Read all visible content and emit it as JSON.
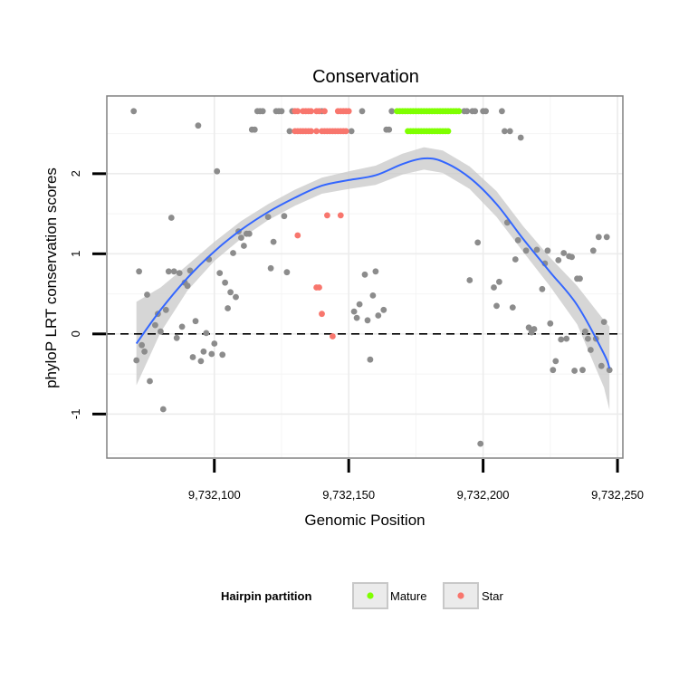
{
  "chart_data": {
    "type": "scatter",
    "title": "Conservation",
    "xlabel": "Genomic Position",
    "ylabel": "phyloP LRT conservation scores",
    "xlim": [
      9732060,
      9732252
    ],
    "ylim": [
      -1.55,
      2.97
    ],
    "x_ticks": [
      9732100,
      9732150,
      9732200,
      9732250
    ],
    "x_tick_labels": [
      "9,732,100",
      "9,732,150",
      "9,732,200",
      "9,732,250"
    ],
    "y_ticks": [
      -1,
      0,
      1,
      2
    ],
    "y_tick_labels": [
      "-1",
      "0",
      "1",
      "2"
    ],
    "reference_line": {
      "y": 0,
      "style": "dashed"
    },
    "grid": true,
    "legend": {
      "title": "Hairpin partition",
      "position": "bottom",
      "items": [
        {
          "label": "Mature",
          "color": "#7FFF00"
        },
        {
          "label": "Star",
          "color": "#F8766D"
        }
      ]
    },
    "colors": {
      "other": "#8c8c8c",
      "smooth": "#3366FF",
      "band": "#c8c8c8"
    },
    "series": [
      {
        "group": "other",
        "points": [
          [
            9732070,
            2.78
          ],
          [
            9732071,
            -0.33
          ],
          [
            9732072,
            0.78
          ],
          [
            9732073,
            -0.14
          ],
          [
            9732074,
            -0.22
          ],
          [
            9732075,
            0.49
          ],
          [
            9732076,
            -0.59
          ],
          [
            9732078,
            0.11
          ],
          [
            9732079,
            0.25
          ],
          [
            9732080,
            0.03
          ],
          [
            9732081,
            -0.94
          ],
          [
            9732082,
            0.3
          ],
          [
            9732083,
            0.78
          ],
          [
            9732084,
            1.45
          ],
          [
            9732085,
            0.78
          ],
          [
            9732086,
            -0.05
          ],
          [
            9732087,
            0.76
          ],
          [
            9732088,
            0.09
          ],
          [
            9732089,
            0.64
          ],
          [
            9732090,
            0.6
          ],
          [
            9732091,
            0.79
          ],
          [
            9732092,
            -0.29
          ],
          [
            9732093,
            0.16
          ],
          [
            9732094,
            2.6
          ],
          [
            9732095,
            -0.34
          ],
          [
            9732096,
            -0.22
          ],
          [
            9732097,
            0.01
          ],
          [
            9732098,
            0.93
          ],
          [
            9732099,
            -0.25
          ],
          [
            9732100,
            -0.12
          ],
          [
            9732101,
            2.03
          ],
          [
            9732102,
            0.76
          ],
          [
            9732103,
            -0.26
          ],
          [
            9732104,
            0.64
          ],
          [
            9732105,
            0.32
          ],
          [
            9732106,
            0.52
          ],
          [
            9732107,
            1.01
          ],
          [
            9732108,
            0.46
          ],
          [
            9732109,
            1.28
          ],
          [
            9732110,
            1.2
          ],
          [
            9732111,
            1.1
          ],
          [
            9732112,
            1.25
          ],
          [
            9732113,
            1.25
          ],
          [
            9732114,
            2.55
          ],
          [
            9732115,
            2.55
          ],
          [
            9732116,
            2.78
          ],
          [
            9732117,
            2.78
          ],
          [
            9732118,
            2.78
          ],
          [
            9732120,
            1.46
          ],
          [
            9732121,
            0.82
          ],
          [
            9732122,
            1.15
          ],
          [
            9732123,
            2.78
          ],
          [
            9732124,
            2.78
          ],
          [
            9732125,
            2.78
          ],
          [
            9732126,
            1.47
          ],
          [
            9732127,
            0.77
          ],
          [
            9732128,
            2.53
          ],
          [
            9732129,
            2.78
          ],
          [
            9732140,
            2.78
          ],
          [
            9732151,
            2.53
          ],
          [
            9732152,
            0.28
          ],
          [
            9732153,
            0.2
          ],
          [
            9732154,
            0.37
          ],
          [
            9732155,
            2.78
          ],
          [
            9732156,
            0.74
          ],
          [
            9732157,
            0.17
          ],
          [
            9732158,
            -0.32
          ],
          [
            9732159,
            0.48
          ],
          [
            9732160,
            0.78
          ],
          [
            9732161,
            0.23
          ],
          [
            9732163,
            0.3
          ],
          [
            9732164,
            2.55
          ],
          [
            9732165,
            2.55
          ],
          [
            9732166,
            2.78
          ],
          [
            9732193,
            2.78
          ],
          [
            9732194,
            2.78
          ],
          [
            9732195,
            0.67
          ],
          [
            9732196,
            2.78
          ],
          [
            9732197,
            2.78
          ],
          [
            9732198,
            1.14
          ],
          [
            9732199,
            -1.37
          ],
          [
            9732200,
            2.78
          ],
          [
            9732201,
            2.78
          ],
          [
            9732204,
            0.58
          ],
          [
            9732205,
            0.35
          ],
          [
            9732206,
            0.65
          ],
          [
            9732207,
            2.78
          ],
          [
            9732208,
            2.53
          ],
          [
            9732209,
            1.39
          ],
          [
            9732210,
            2.53
          ],
          [
            9732211,
            0.33
          ],
          [
            9732212,
            0.93
          ],
          [
            9732213,
            1.17
          ],
          [
            9732214,
            2.45
          ],
          [
            9732216,
            1.04
          ],
          [
            9732217,
            0.08
          ],
          [
            9732218,
            0.02
          ],
          [
            9732219,
            0.06
          ],
          [
            9732220,
            1.05
          ],
          [
            9732222,
            0.56
          ],
          [
            9732223,
            0.88
          ],
          [
            9732224,
            1.04
          ],
          [
            9732225,
            0.13
          ],
          [
            9732226,
            -0.45
          ],
          [
            9732227,
            -0.34
          ],
          [
            9732228,
            0.92
          ],
          [
            9732229,
            -0.07
          ],
          [
            9732230,
            1.01
          ],
          [
            9732231,
            -0.06
          ],
          [
            9732232,
            0.97
          ],
          [
            9732233,
            0.96
          ],
          [
            9732234,
            -0.46
          ],
          [
            9732235,
            0.69
          ],
          [
            9732236,
            0.69
          ],
          [
            9732237,
            -0.45
          ],
          [
            9732238,
            0.03
          ],
          [
            9732239,
            -0.06
          ],
          [
            9732240,
            -0.2
          ],
          [
            9732241,
            1.04
          ],
          [
            9732242,
            -0.06
          ],
          [
            9732243,
            1.21
          ],
          [
            9732244,
            -0.4
          ],
          [
            9732245,
            0.15
          ],
          [
            9732246,
            1.21
          ],
          [
            9732247,
            -0.45
          ]
        ]
      },
      {
        "group": "Mature",
        "points": [
          [
            9732168,
            2.78
          ],
          [
            9732169,
            2.78
          ],
          [
            9732170,
            2.78
          ],
          [
            9732171,
            2.78
          ],
          [
            9732172,
            2.78
          ],
          [
            9732173,
            2.78
          ],
          [
            9732174,
            2.78
          ],
          [
            9732175,
            2.78
          ],
          [
            9732176,
            2.78
          ],
          [
            9732177,
            2.78
          ],
          [
            9732178,
            2.78
          ],
          [
            9732179,
            2.78
          ],
          [
            9732180,
            2.78
          ],
          [
            9732181,
            2.78
          ],
          [
            9732182,
            2.78
          ],
          [
            9732183,
            2.78
          ],
          [
            9732184,
            2.78
          ],
          [
            9732185,
            2.78
          ],
          [
            9732186,
            2.78
          ],
          [
            9732187,
            2.78
          ],
          [
            9732188,
            2.78
          ],
          [
            9732189,
            2.78
          ],
          [
            9732190,
            2.78
          ],
          [
            9732191,
            2.78
          ],
          [
            9732172,
            2.53
          ],
          [
            9732173,
            2.53
          ],
          [
            9732174,
            2.53
          ],
          [
            9732175,
            2.53
          ],
          [
            9732176,
            2.53
          ],
          [
            9732177,
            2.53
          ],
          [
            9732178,
            2.53
          ],
          [
            9732179,
            2.53
          ],
          [
            9732180,
            2.53
          ],
          [
            9732181,
            2.53
          ],
          [
            9732182,
            2.53
          ],
          [
            9732183,
            2.53
          ],
          [
            9732184,
            2.53
          ],
          [
            9732185,
            2.53
          ],
          [
            9732186,
            2.53
          ],
          [
            9732187,
            2.53
          ]
        ]
      },
      {
        "group": "Star",
        "points": [
          [
            9732130,
            2.78
          ],
          [
            9732131,
            2.78
          ],
          [
            9732133,
            2.78
          ],
          [
            9732134,
            2.78
          ],
          [
            9732135,
            2.78
          ],
          [
            9732136,
            2.78
          ],
          [
            9732138,
            2.78
          ],
          [
            9732139,
            2.78
          ],
          [
            9732141,
            2.78
          ],
          [
            9732146,
            2.78
          ],
          [
            9732147,
            2.78
          ],
          [
            9732148,
            2.78
          ],
          [
            9732149,
            2.78
          ],
          [
            9732150,
            2.78
          ],
          [
            9732130,
            2.53
          ],
          [
            9732131,
            2.53
          ],
          [
            9732132,
            2.53
          ],
          [
            9732133,
            2.53
          ],
          [
            9732134,
            2.53
          ],
          [
            9732135,
            2.53
          ],
          [
            9732136,
            2.53
          ],
          [
            9732138,
            2.53
          ],
          [
            9732140,
            2.53
          ],
          [
            9732141,
            2.53
          ],
          [
            9732142,
            2.53
          ],
          [
            9732143,
            2.53
          ],
          [
            9732144,
            2.53
          ],
          [
            9732145,
            2.53
          ],
          [
            9732146,
            2.53
          ],
          [
            9732147,
            2.53
          ],
          [
            9732148,
            2.53
          ],
          [
            9732149,
            2.53
          ],
          [
            9732131,
            1.23
          ],
          [
            9732138,
            0.58
          ],
          [
            9732139,
            0.58
          ],
          [
            9732140,
            0.25
          ],
          [
            9732142,
            1.48
          ],
          [
            9732144,
            -0.03
          ],
          [
            9732147,
            1.48
          ]
        ]
      }
    ],
    "smooth": {
      "x": [
        9732071,
        9732080,
        9732090,
        9732100,
        9732110,
        9732120,
        9732130,
        9732140,
        9732150,
        9732160,
        9732170,
        9732178,
        9732185,
        9732195,
        9732205,
        9732215,
        9732225,
        9732235,
        9732245,
        9732247
      ],
      "y": [
        -0.12,
        0.3,
        0.7,
        1.03,
        1.3,
        1.52,
        1.7,
        1.85,
        1.92,
        1.98,
        2.12,
        2.19,
        2.15,
        1.95,
        1.62,
        1.18,
        0.77,
        0.36,
        -0.25,
        -0.43
      ],
      "se": [
        0.52,
        0.28,
        0.16,
        0.12,
        0.11,
        0.1,
        0.1,
        0.1,
        0.11,
        0.12,
        0.13,
        0.14,
        0.14,
        0.14,
        0.16,
        0.16,
        0.18,
        0.24,
        0.42,
        0.52
      ]
    }
  }
}
